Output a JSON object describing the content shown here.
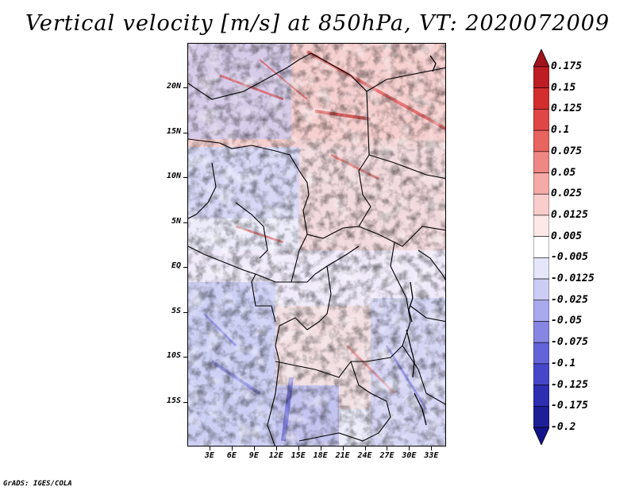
{
  "title": "Vertical velocity [m/s] at 850hPa, VT: 2020072009",
  "footer": "GrADS: IGES/COLA",
  "map": {
    "lon_range": [
      0,
      35
    ],
    "lat_range": [
      -20,
      25
    ],
    "lat_ticks": [
      "20N",
      "15N",
      "10N",
      "5N",
      "EQ",
      "5S",
      "10S",
      "15S"
    ],
    "lat_tick_values": [
      20,
      15,
      10,
      5,
      0,
      -5,
      -10,
      -15
    ],
    "lon_ticks": [
      "3E",
      "6E",
      "9E",
      "12E",
      "15E",
      "18E",
      "21E",
      "24E",
      "27E",
      "30E",
      "33E"
    ],
    "lon_tick_values": [
      3,
      6,
      9,
      12,
      15,
      18,
      21,
      24,
      27,
      30,
      33
    ]
  },
  "colorbar": {
    "labels": [
      "0.175",
      "0.15",
      "0.125",
      "0.1",
      "0.075",
      "0.05",
      "0.025",
      "0.0125",
      "0.005",
      "-0.005",
      "-0.0125",
      "-0.025",
      "-0.05",
      "-0.075",
      "-0.1",
      "-0.125",
      "-0.175",
      "-0.2"
    ],
    "colors": [
      "#a0141e",
      "#bc1e24",
      "#d22e2e",
      "#e04646",
      "#e8645f",
      "#ef8784",
      "#f5aaa7",
      "#f9cdcb",
      "#fde8e7",
      "#ffffff",
      "#e6e6fb",
      "#ccccf5",
      "#a9a9ee",
      "#8787e3",
      "#6464d8",
      "#4646c8",
      "#2e2eb0",
      "#1e1e96",
      "#14148a"
    ]
  }
}
